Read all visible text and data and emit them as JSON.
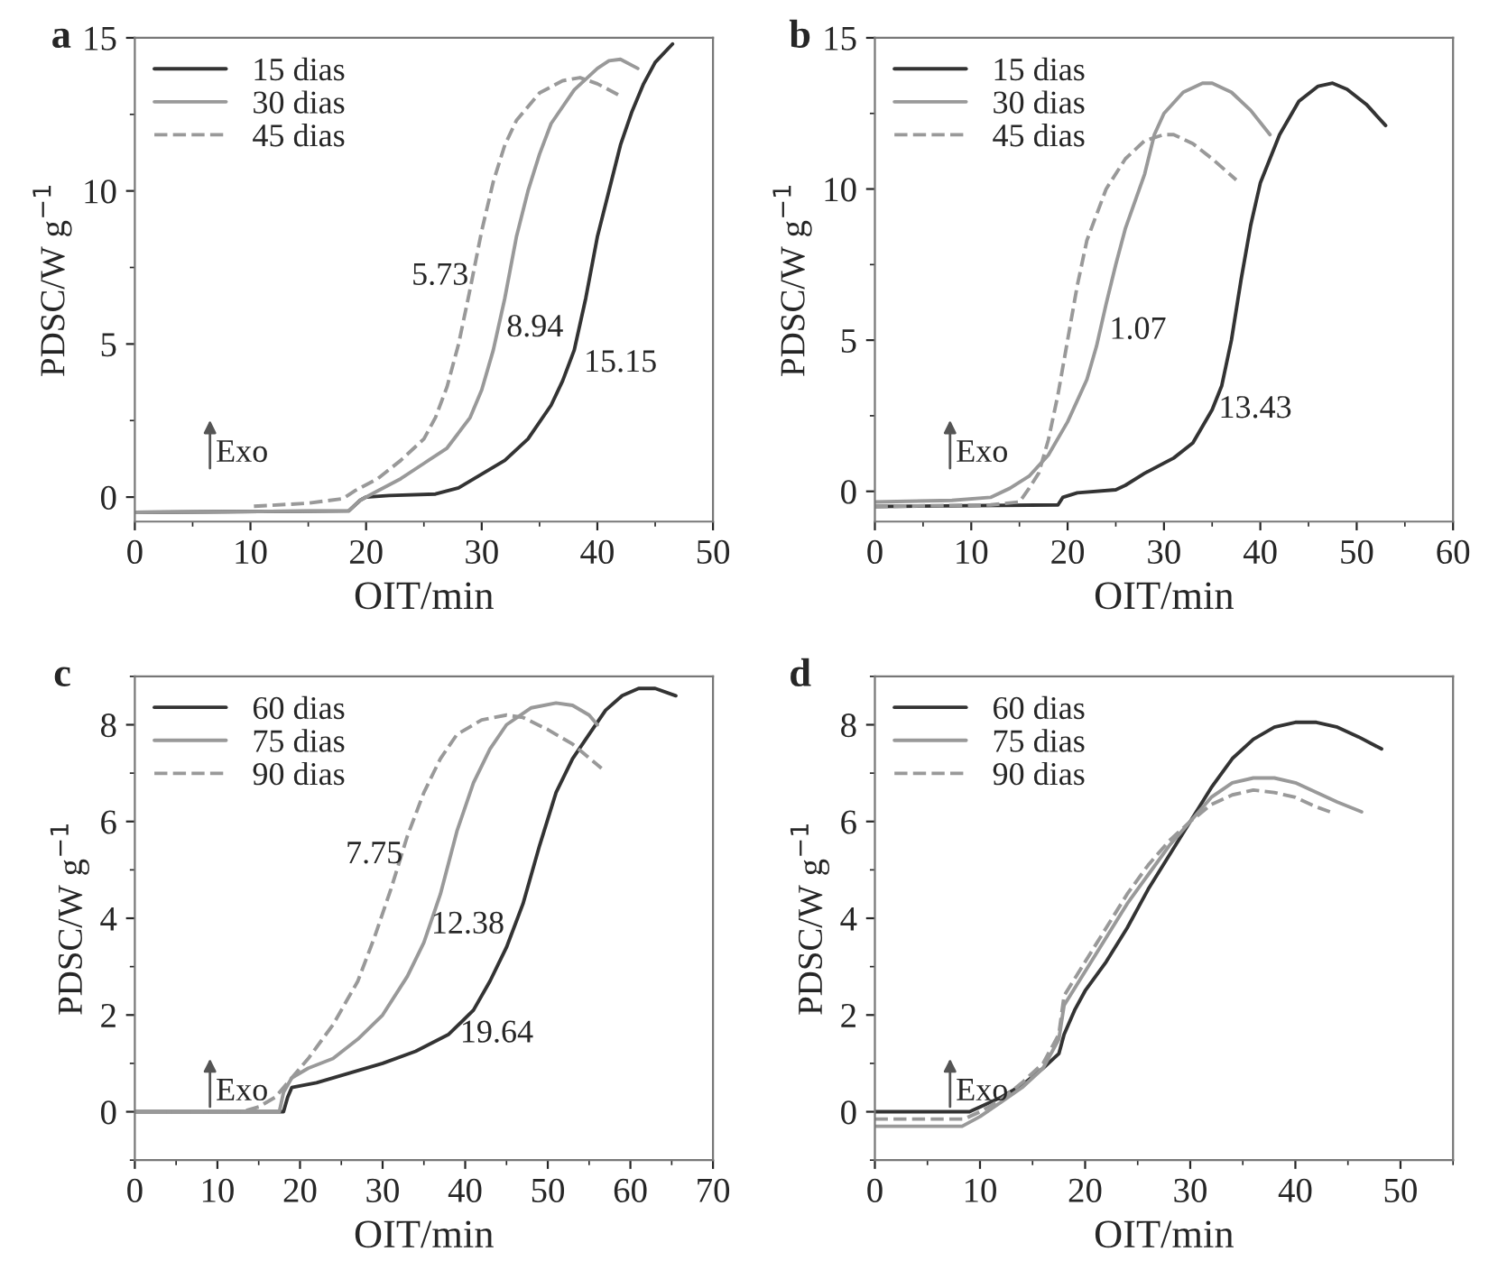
{
  "chart_data": [
    {
      "type": "line",
      "title": "a",
      "xlabel": "OIT/min",
      "ylabel": "PDSC/W g$^{−1}$",
      "xlim": [
        0,
        50
      ],
      "ylim": [
        -0.8,
        15
      ],
      "xticks": [
        0,
        10,
        20,
        30,
        40,
        50
      ],
      "yticks": [
        0,
        5,
        10,
        15
      ],
      "legend": "top left",
      "grid": false,
      "series": [
        {
          "name": "15 dias",
          "color": "#333333",
          "line_style": "solid",
          "x": [
            0,
            18.5,
            19.5,
            20,
            22,
            26,
            28,
            30,
            32,
            34,
            36,
            37,
            38,
            39,
            40,
            41,
            42,
            43,
            44,
            45,
            46.5
          ],
          "values": [
            -0.5,
            -0.45,
            -0.1,
            0,
            0.05,
            0.1,
            0.3,
            0.75,
            1.2,
            1.9,
            3.0,
            3.8,
            4.8,
            6.5,
            8.5,
            10,
            11.5,
            12.6,
            13.5,
            14.2,
            14.8
          ]
        },
        {
          "name": "30 dias",
          "color": "#999999",
          "line_style": "solid",
          "x": [
            0,
            18.5,
            19.5,
            21,
            23,
            25,
            27,
            29,
            30,
            31,
            32,
            33,
            34,
            35,
            36,
            38,
            40,
            41,
            42,
            43.5
          ],
          "values": [
            -0.5,
            -0.45,
            -0.1,
            0.2,
            0.6,
            1.1,
            1.6,
            2.6,
            3.5,
            4.8,
            6.5,
            8.5,
            10,
            11.2,
            12.2,
            13.3,
            14.0,
            14.25,
            14.3,
            14.0
          ]
        },
        {
          "name": "45 dias",
          "color": "#999999",
          "line_style": "dashed",
          "x": [
            10.3,
            15,
            18,
            19,
            21,
            23,
            25,
            26,
            27,
            28,
            29,
            30,
            31,
            32,
            33,
            35,
            37,
            38.5,
            40,
            42
          ],
          "values": [
            -0.3,
            -0.2,
            -0.05,
            0.2,
            0.6,
            1.2,
            1.9,
            2.6,
            3.6,
            5,
            6.8,
            8.7,
            10.3,
            11.5,
            12.3,
            13.2,
            13.6,
            13.7,
            13.5,
            13.1
          ]
        }
      ],
      "annotations": [
        "Exo",
        "5.73",
        "8.94",
        "15.15"
      ]
    },
    {
      "type": "line",
      "title": "b",
      "xlabel": "OIT/min",
      "ylabel": "PDSC/W g$^{−1}$",
      "xlim": [
        0,
        60
      ],
      "ylim": [
        -1,
        15
      ],
      "xticks": [
        0,
        10,
        20,
        30,
        40,
        50,
        60
      ],
      "yticks": [
        0,
        5,
        10,
        15
      ],
      "legend": "top left",
      "grid": false,
      "series": [
        {
          "name": "15 dias",
          "color": "#333333",
          "line_style": "solid",
          "x": [
            0,
            19,
            19.5,
            21,
            25,
            26,
            28,
            31,
            33,
            35,
            36,
            37,
            38,
            39,
            40,
            42,
            44,
            46,
            47.5,
            49,
            51,
            53
          ],
          "values": [
            -0.5,
            -0.45,
            -0.2,
            -0.05,
            0.05,
            0.2,
            0.6,
            1.1,
            1.6,
            2.7,
            3.5,
            5,
            7,
            8.8,
            10.2,
            11.8,
            12.9,
            13.4,
            13.5,
            13.3,
            12.8,
            12.1
          ]
        },
        {
          "name": "30 dias",
          "color": "#999999",
          "line_style": "solid",
          "x": [
            0,
            8,
            12,
            14,
            16,
            18,
            20,
            22,
            23,
            24,
            25,
            26,
            28,
            29,
            30,
            32,
            34,
            35,
            37,
            39,
            41
          ],
          "values": [
            -0.35,
            -0.3,
            -0.2,
            0.1,
            0.5,
            1.2,
            2.3,
            3.7,
            4.8,
            6.2,
            7.5,
            8.7,
            10.5,
            11.8,
            12.5,
            13.2,
            13.5,
            13.5,
            13.2,
            12.6,
            11.8
          ]
        },
        {
          "name": "45 dias",
          "color": "#999999",
          "line_style": "dashed",
          "x": [
            0,
            12,
            15,
            16,
            17,
            18,
            19,
            20,
            21,
            22,
            24,
            26,
            28,
            30,
            31,
            33,
            35,
            37.5
          ],
          "values": [
            -0.5,
            -0.45,
            -0.35,
            0.1,
            0.6,
            1.7,
            3.2,
            5.0,
            6.8,
            8.3,
            10,
            11,
            11.6,
            11.8,
            11.8,
            11.5,
            11,
            10.3
          ]
        }
      ],
      "annotations": [
        "Exo",
        "1.07",
        "13.43"
      ]
    },
    {
      "type": "line",
      "title": "c",
      "xlabel": "OIT/min",
      "ylabel": "PDSC/W g$^{−1}$",
      "xlim": [
        0,
        70
      ],
      "ylim": [
        -1,
        9
      ],
      "xticks": [
        0,
        10,
        20,
        30,
        40,
        50,
        60,
        70
      ],
      "yticks": [
        0,
        2,
        4,
        6,
        8
      ],
      "legend": "top left",
      "grid": false,
      "series": [
        {
          "name": "60 dias",
          "color": "#333333",
          "line_style": "solid",
          "x": [
            0,
            18,
            18.5,
            19,
            22,
            26,
            30,
            34,
            38,
            41,
            43,
            45,
            47,
            49,
            51,
            53,
            55,
            57,
            59,
            61,
            63,
            65.5
          ],
          "values": [
            0,
            0,
            0.3,
            0.5,
            0.6,
            0.8,
            1.0,
            1.25,
            1.6,
            2.1,
            2.7,
            3.4,
            4.3,
            5.5,
            6.6,
            7.3,
            7.8,
            8.3,
            8.6,
            8.75,
            8.75,
            8.6
          ]
        },
        {
          "name": "75 dias",
          "color": "#999999",
          "line_style": "solid",
          "x": [
            0,
            17.5,
            18,
            19,
            21,
            24,
            27,
            30,
            33,
            35,
            37,
            39,
            41,
            43,
            45,
            48,
            51,
            53,
            55,
            56
          ],
          "values": [
            0,
            0,
            0.4,
            0.7,
            0.9,
            1.1,
            1.5,
            2.0,
            2.8,
            3.5,
            4.5,
            5.8,
            6.8,
            7.5,
            8.0,
            8.35,
            8.45,
            8.4,
            8.2,
            8.0
          ]
        },
        {
          "name": "90 dias",
          "color": "#999999",
          "line_style": "dashed",
          "x": [
            0,
            13,
            15,
            17,
            19,
            21,
            24,
            27,
            29,
            31,
            33,
            35,
            37,
            39,
            42,
            45,
            47,
            50,
            53,
            56.5
          ],
          "values": [
            0,
            0,
            0.1,
            0.3,
            0.7,
            1.1,
            1.8,
            2.7,
            3.6,
            4.6,
            5.7,
            6.6,
            7.3,
            7.8,
            8.1,
            8.2,
            8.15,
            7.9,
            7.6,
            7.1
          ]
        }
      ],
      "annotations": [
        "Exo",
        "7.75",
        "12.38",
        "19.64"
      ]
    },
    {
      "type": "line",
      "title": "d",
      "xlabel": "OIT/min",
      "ylabel": "PDSC/W g$^{−1}$",
      "xlim": [
        0,
        55
      ],
      "ylim": [
        -1,
        9
      ],
      "xticks": [
        0,
        10,
        20,
        30,
        40,
        50
      ],
      "yticks": [
        0,
        2,
        4,
        6,
        8
      ],
      "legend": "top left",
      "grid": false,
      "series": [
        {
          "name": "60 dias",
          "color": "#333333",
          "line_style": "solid",
          "x": [
            0,
            9,
            10,
            12,
            14,
            16,
            17.5,
            18,
            19,
            20,
            22,
            24,
            26,
            28,
            30,
            32,
            34,
            36,
            38,
            40,
            42,
            44,
            46,
            48.2
          ],
          "values": [
            0,
            0,
            0.1,
            0.3,
            0.55,
            0.9,
            1.2,
            1.6,
            2.1,
            2.5,
            3.1,
            3.8,
            4.6,
            5.3,
            6.0,
            6.7,
            7.3,
            7.7,
            7.95,
            8.05,
            8.05,
            7.95,
            7.75,
            7.5
          ]
        },
        {
          "name": "75 dias",
          "color": "#999999",
          "line_style": "solid",
          "x": [
            0,
            8.3,
            10,
            12,
            14,
            16,
            17.5,
            18,
            20,
            22,
            24,
            26,
            28,
            30,
            32,
            34,
            36,
            38,
            40,
            42,
            44,
            46.3
          ],
          "values": [
            -0.3,
            -0.3,
            -0.1,
            0.2,
            0.5,
            0.9,
            1.5,
            2.2,
            2.9,
            3.6,
            4.3,
            4.9,
            5.5,
            6.0,
            6.5,
            6.8,
            6.9,
            6.9,
            6.8,
            6.6,
            6.4,
            6.2
          ]
        },
        {
          "name": "90 dias",
          "color": "#999999",
          "line_style": "dashed",
          "x": [
            0,
            8.5,
            10,
            12,
            14,
            16,
            17.5,
            18,
            20,
            22,
            24,
            26,
            28,
            30,
            32,
            34,
            36,
            38,
            40,
            42,
            43.3
          ],
          "values": [
            -0.15,
            -0.15,
            0,
            0.25,
            0.6,
            1.0,
            1.6,
            2.4,
            3.1,
            3.8,
            4.5,
            5.1,
            5.6,
            6.0,
            6.35,
            6.55,
            6.65,
            6.6,
            6.5,
            6.3,
            6.2
          ]
        }
      ],
      "annotations": [
        "Exo"
      ]
    }
  ]
}
